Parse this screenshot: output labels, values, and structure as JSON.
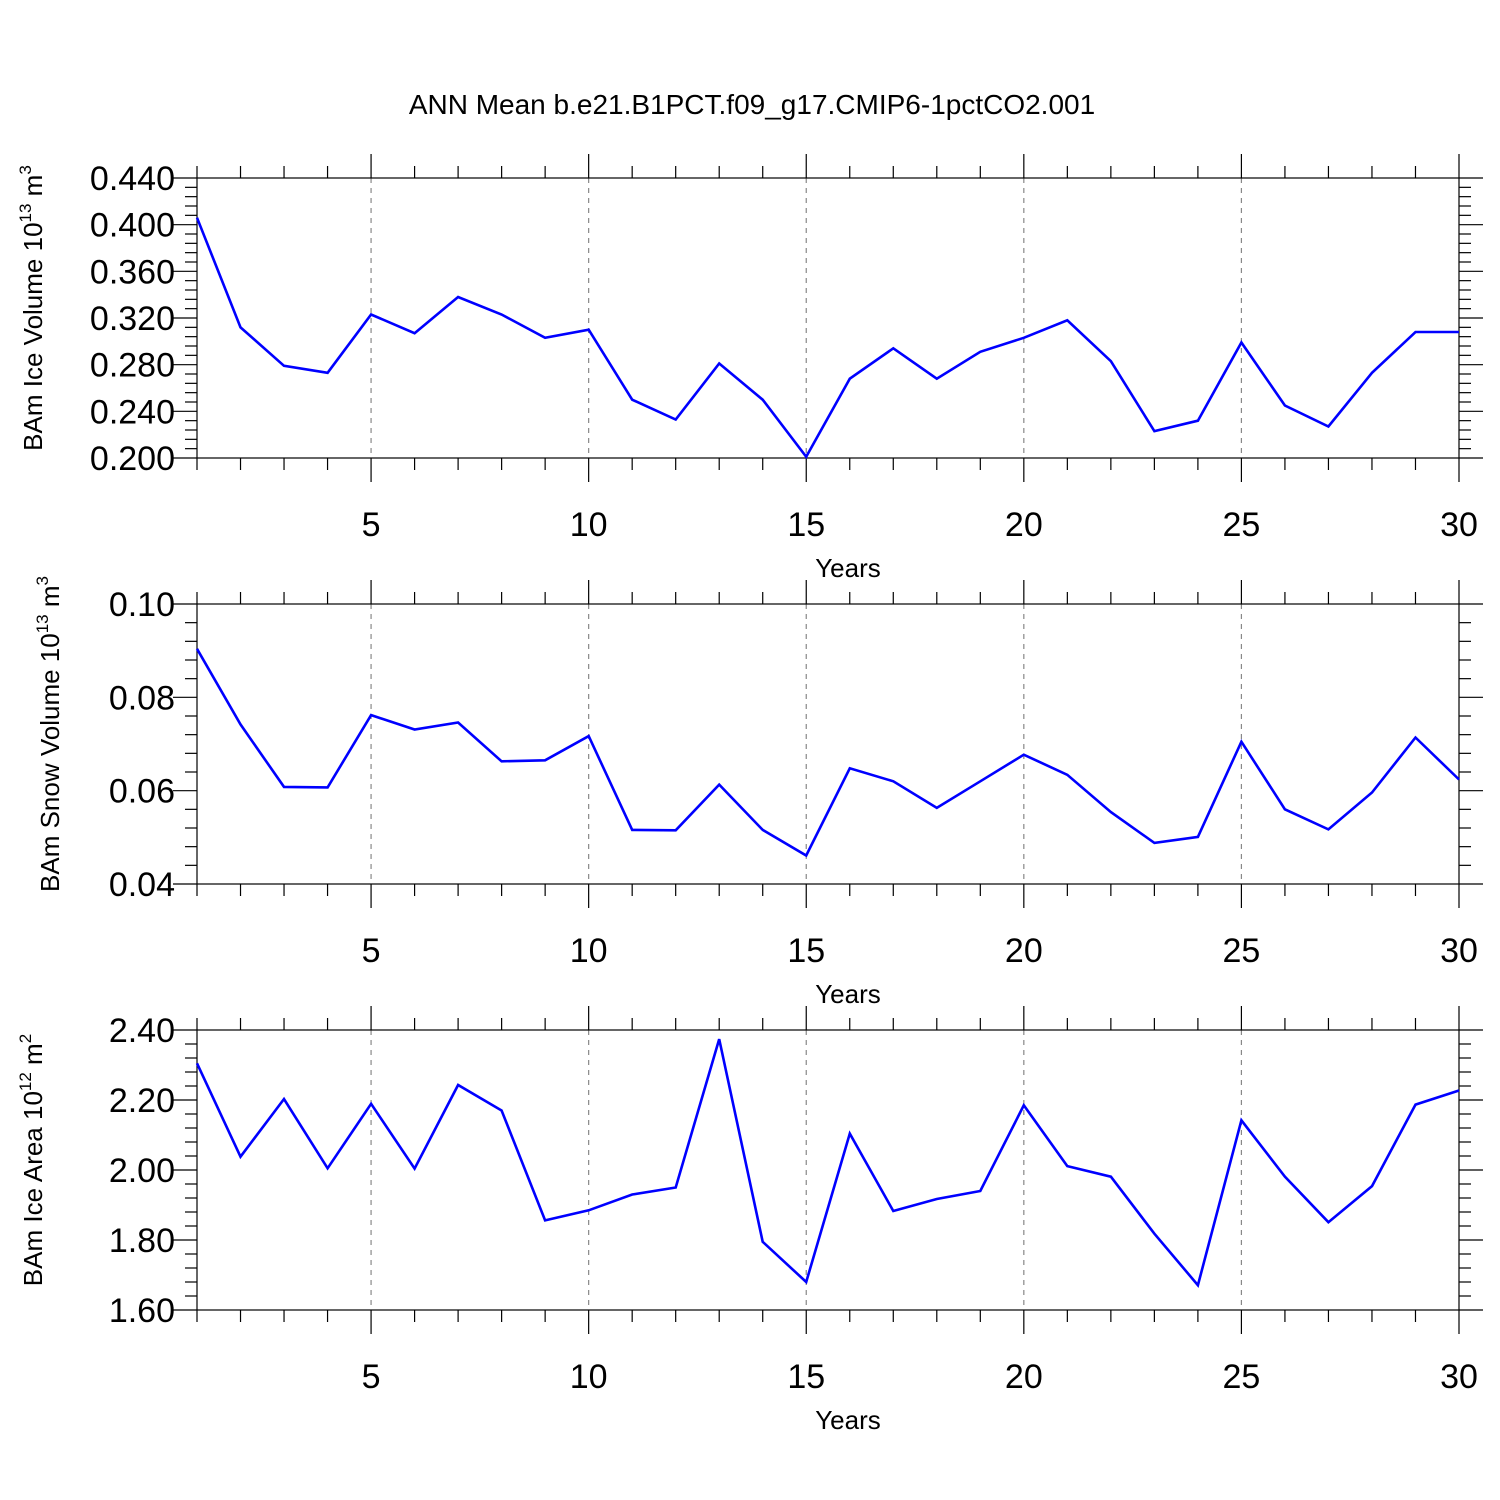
{
  "title": "ANN Mean b.e21.B1PCT.f09_g17.CMIP6-1pctCO2.001",
  "colors": {
    "series": "#0000ff",
    "grid": "#888888",
    "axis": "#000000"
  },
  "chart_data": [
    {
      "type": "line",
      "ylabel_main": "BAm Ice Volume 10",
      "ylabel_exp": "13",
      "ylabel_unit": " m",
      "ylabel_unit_exp": "3",
      "xlabel": "Years",
      "xlim": [
        1,
        30
      ],
      "ylim": [
        0.2,
        0.44
      ],
      "xticks": [
        5,
        10,
        15,
        20,
        25,
        30
      ],
      "yticks": [
        0.2,
        0.24,
        0.28,
        0.32,
        0.36,
        0.4,
        0.44
      ],
      "ytick_labels": [
        "0.200",
        "0.240",
        "0.280",
        "0.320",
        "0.360",
        "0.400",
        "0.440"
      ],
      "grid_x": [
        5,
        10,
        15,
        20,
        25
      ],
      "x": [
        1,
        2,
        3,
        4,
        5,
        6,
        7,
        8,
        9,
        10,
        11,
        12,
        13,
        14,
        15,
        16,
        17,
        18,
        19,
        20,
        21,
        22,
        23,
        24,
        25,
        26,
        27,
        28,
        29,
        30
      ],
      "values": [
        0.406,
        0.312,
        0.279,
        0.273,
        0.323,
        0.307,
        0.338,
        0.323,
        0.303,
        0.31,
        0.25,
        0.233,
        0.281,
        0.25,
        0.201,
        0.268,
        0.294,
        0.268,
        0.291,
        0.303,
        0.318,
        0.283,
        0.223,
        0.232,
        0.299,
        0.245,
        0.227,
        0.273,
        0.308,
        0.308
      ]
    },
    {
      "type": "line",
      "ylabel_main": "BAm Snow Volume 10",
      "ylabel_exp": "13",
      "ylabel_unit": " m",
      "ylabel_unit_exp": "3",
      "xlabel": "Years",
      "xlim": [
        1,
        30
      ],
      "ylim": [
        0.04,
        0.1
      ],
      "xticks": [
        5,
        10,
        15,
        20,
        25,
        30
      ],
      "yticks": [
        0.04,
        0.06,
        0.08,
        0.1
      ],
      "ytick_labels": [
        "0.04",
        "0.06",
        "0.08",
        "0.10"
      ],
      "grid_x": [
        5,
        10,
        15,
        20,
        25
      ],
      "x": [
        1,
        2,
        3,
        4,
        5,
        6,
        7,
        8,
        9,
        10,
        11,
        12,
        13,
        14,
        15,
        16,
        17,
        18,
        19,
        20,
        21,
        22,
        23,
        24,
        25,
        26,
        27,
        28,
        29,
        30
      ],
      "values": [
        0.0904,
        0.0742,
        0.0608,
        0.0607,
        0.0762,
        0.0731,
        0.0746,
        0.0663,
        0.0665,
        0.0717,
        0.0516,
        0.0515,
        0.0613,
        0.0516,
        0.0461,
        0.0648,
        0.062,
        0.0563,
        0.062,
        0.0677,
        0.0634,
        0.0554,
        0.0488,
        0.0501,
        0.0705,
        0.056,
        0.0517,
        0.0596,
        0.0714,
        0.0624
      ]
    },
    {
      "type": "line",
      "ylabel_main": "BAm Ice Area 10",
      "ylabel_exp": "12",
      "ylabel_unit": " m",
      "ylabel_unit_exp": "2",
      "xlabel": "Years",
      "xlim": [
        1,
        30
      ],
      "ylim": [
        1.6,
        2.4
      ],
      "xticks": [
        5,
        10,
        15,
        20,
        25,
        30
      ],
      "yticks": [
        1.6,
        1.8,
        2.0,
        2.2,
        2.4
      ],
      "ytick_labels": [
        "1.60",
        "1.80",
        "2.00",
        "2.20",
        "2.40"
      ],
      "grid_x": [
        5,
        10,
        15,
        20,
        25
      ],
      "x": [
        1,
        2,
        3,
        4,
        5,
        6,
        7,
        8,
        9,
        10,
        11,
        12,
        13,
        14,
        15,
        16,
        17,
        18,
        19,
        20,
        21,
        22,
        23,
        24,
        25,
        26,
        27,
        28,
        29,
        30
      ],
      "values": [
        2.305,
        2.038,
        2.203,
        2.005,
        2.189,
        2.004,
        2.243,
        2.17,
        1.856,
        1.885,
        1.93,
        1.95,
        2.374,
        1.795,
        1.68,
        2.104,
        1.883,
        1.917,
        1.94,
        2.185,
        2.011,
        1.981,
        1.818,
        1.671,
        2.142,
        1.981,
        1.851,
        1.954,
        2.187,
        2.227
      ]
    }
  ]
}
